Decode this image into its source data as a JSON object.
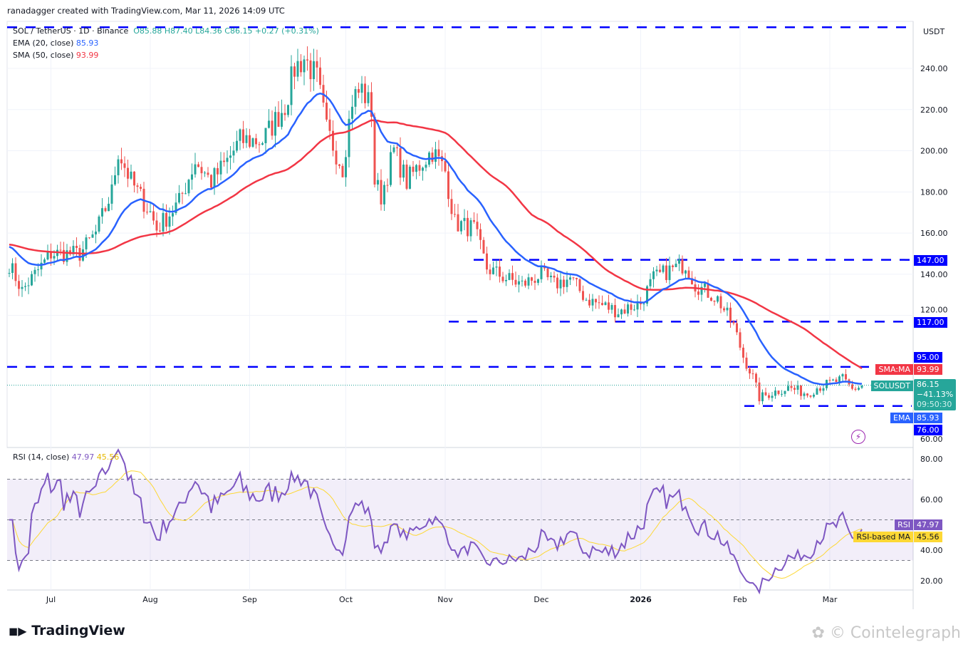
{
  "credit": "ranadagger created with TradingView.com, Mar 11, 2026 14:09 UTC",
  "legend": {
    "symbol": "SOL / TetherUS · 1D · Binance",
    "o": "O85.88",
    "h": "H87.40",
    "l": "L84.36",
    "c": "C86.15",
    "chg": "+0.27 (+0.31%)",
    "ema_label": "EMA (20, close)",
    "ema_value": "85.93",
    "sma_label": "SMA (50, close)",
    "sma_value": "93.99",
    "rsi_label": "RSI (14, close)",
    "rsi_value": "47.97",
    "rsi_ma_value": "45.56"
  },
  "axis": {
    "currency": "USDT",
    "price_ticks": [
      "240.00",
      "220.00",
      "200.00",
      "180.00",
      "160.00",
      "140.00",
      "120.00",
      "60.00"
    ],
    "rsi_ticks": [
      "80.00",
      "60.00",
      "40.00",
      "20.00"
    ],
    "time_ticks": [
      "Jul",
      "Aug",
      "Sep",
      "Oct",
      "Nov",
      "Dec",
      "2026",
      "Feb",
      "Mar"
    ]
  },
  "labels": {
    "l147": "147.00",
    "l117": "117.00",
    "l95": "95.00",
    "l76": "76.00",
    "sma_tag": "SMA:MA",
    "sma_val": "93.99",
    "sym_tag": "SOLUSDT",
    "price": "86.15",
    "pct": "−41.13%",
    "countdown": "09:50:30",
    "ema_tag": "EMA",
    "ema_val": "85.93",
    "rsi_tag": "RSI",
    "rsi_val": "47.97",
    "rsima_tag": "RSI-based MA",
    "rsima_val": "45.56"
  },
  "colors": {
    "up": "#26a69a",
    "down": "#ef5350",
    "ema": "#2962ff",
    "sma": "#f23645",
    "level": "#0000ff",
    "rsi": "#7e57c2",
    "rsi_ma": "#fdd835"
  },
  "brand": "TradingView",
  "watermark": "Cointelegraph",
  "chart_data": {
    "type": "candlestick",
    "symbol": "SOLUSDT",
    "interval": "1D",
    "ylim": [
      55,
      262
    ],
    "rsi_ylim": [
      15,
      85
    ],
    "rsi_bands": [
      30,
      50,
      70
    ],
    "levels": [
      260,
      147,
      117,
      95,
      76
    ],
    "closes": [
      [
        "2025-06-18",
        145
      ],
      [
        "2025-06-22",
        132
      ],
      [
        "2025-07-01",
        150
      ],
      [
        "2025-07-10",
        150
      ],
      [
        "2025-07-15",
        160
      ],
      [
        "2025-07-20",
        180
      ],
      [
        "2025-07-22",
        200
      ],
      [
        "2025-07-26",
        185
      ],
      [
        "2025-08-01",
        170
      ],
      [
        "2025-08-03",
        162
      ],
      [
        "2025-08-10",
        175
      ],
      [
        "2025-08-15",
        195
      ],
      [
        "2025-08-20",
        185
      ],
      [
        "2025-08-25",
        195
      ],
      [
        "2025-08-29",
        205
      ],
      [
        "2025-09-05",
        205
      ],
      [
        "2025-09-12",
        222
      ],
      [
        "2025-09-15",
        240
      ],
      [
        "2025-09-18",
        245
      ],
      [
        "2025-09-22",
        235
      ],
      [
        "2025-09-25",
        210
      ],
      [
        "2025-09-30",
        192
      ],
      [
        "2025-10-03",
        225
      ],
      [
        "2025-10-06",
        230
      ],
      [
        "2025-10-09",
        220
      ],
      [
        "2025-10-10",
        185
      ],
      [
        "2025-10-12",
        178
      ],
      [
        "2025-10-16",
        200
      ],
      [
        "2025-10-20",
        185
      ],
      [
        "2025-10-25",
        195
      ],
      [
        "2025-10-28",
        200
      ],
      [
        "2025-11-01",
        190
      ],
      [
        "2025-11-04",
        165
      ],
      [
        "2025-11-10",
        162
      ],
      [
        "2025-11-14",
        143
      ],
      [
        "2025-11-20",
        138
      ],
      [
        "2025-11-25",
        135
      ],
      [
        "2025-12-01",
        140
      ],
      [
        "2025-12-05",
        135
      ],
      [
        "2025-12-10",
        138
      ],
      [
        "2025-12-15",
        128
      ],
      [
        "2025-12-20",
        125
      ],
      [
        "2025-12-25",
        122
      ],
      [
        "2026-01-01",
        126
      ],
      [
        "2026-01-05",
        138
      ],
      [
        "2026-01-10",
        142
      ],
      [
        "2026-01-15",
        145
      ],
      [
        "2026-01-18",
        135
      ],
      [
        "2026-01-25",
        128
      ],
      [
        "2026-01-30",
        115
      ],
      [
        "2026-02-02",
        100
      ],
      [
        "2026-02-05",
        90
      ],
      [
        "2026-02-07",
        80
      ],
      [
        "2026-02-12",
        83
      ],
      [
        "2026-02-16",
        85
      ],
      [
        "2026-02-22",
        82
      ],
      [
        "2026-02-25",
        85
      ],
      [
        "2026-03-01",
        87
      ],
      [
        "2026-03-05",
        89
      ],
      [
        "2026-03-08",
        84
      ],
      [
        "2026-03-11",
        86
      ]
    ]
  }
}
